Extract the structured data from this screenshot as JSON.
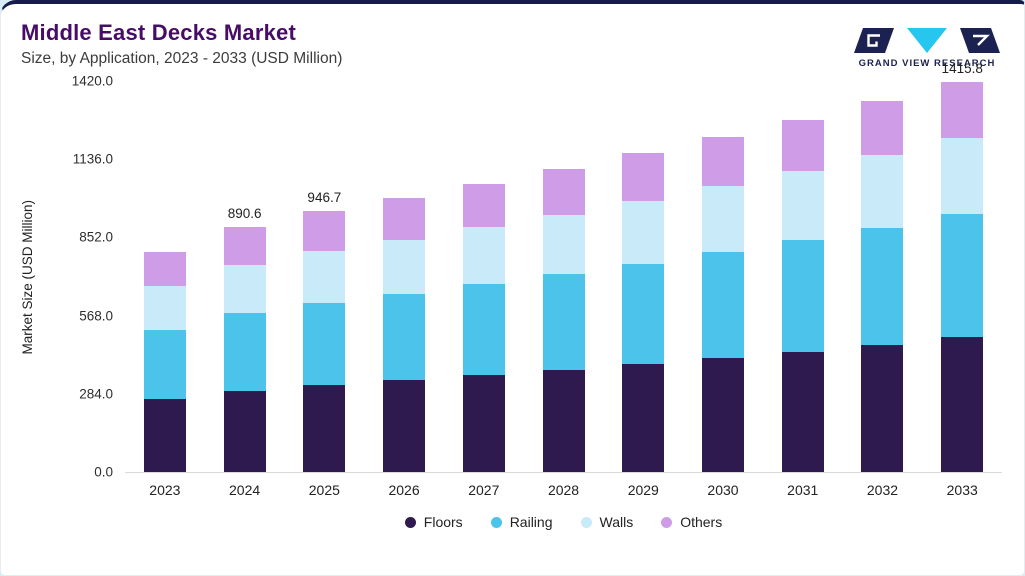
{
  "page": {
    "title": "Middle East Decks Market",
    "subtitle": "Size, by Application, 2023 - 2033 (USD Million)",
    "brand": {
      "name": "GRAND VIEW RESEARCH"
    }
  },
  "colors": {
    "title": "#470c66",
    "top_bar": "#161c4a",
    "brand_navy": "#1b2150",
    "brand_cyan": "#27c6ee",
    "page_background": "#d8ecf5",
    "card_background": "#ffffff"
  },
  "chart_data": {
    "type": "bar",
    "stacked": true,
    "title": "Middle East Decks Market",
    "subtitle": "Size, by Application, 2023 - 2033 (USD Million)",
    "xlabel": "",
    "ylabel": "Market Size (USD Million)",
    "ylim": [
      0,
      1420
    ],
    "grid": false,
    "legend_position": "bottom",
    "yticks": [
      {
        "label": "0.0",
        "value": 0
      },
      {
        "label": "284.0",
        "value": 284
      },
      {
        "label": "568.0",
        "value": 568
      },
      {
        "label": "852.0",
        "value": 852
      },
      {
        "label": "1136.0",
        "value": 1136
      },
      {
        "label": "1420.0",
        "value": 1420
      }
    ],
    "categories": [
      "2023",
      "2024",
      "2025",
      "2026",
      "2027",
      "2028",
      "2029",
      "2030",
      "2031",
      "2032",
      "2033"
    ],
    "series": [
      {
        "name": "Floors",
        "color": "#2e1a4f",
        "values": [
          265,
          296,
          316,
          333,
          351,
          371,
          392,
          414,
          437,
          462,
          490
        ]
      },
      {
        "name": "Railing",
        "color": "#4cc3ea",
        "values": [
          252,
          281,
          298,
          313,
          330,
          347,
          365,
          384,
          404,
          425,
          447
        ]
      },
      {
        "name": "Walls",
        "color": "#c9eaf8",
        "values": [
          158,
          176,
          187,
          197,
          207,
          217,
          228,
          239,
          251,
          263,
          275
        ]
      },
      {
        "name": "Others",
        "color": "#cf9de8",
        "values": [
          125,
          137.6,
          145.7,
          152,
          158,
          165,
          172,
          180,
          188,
          196,
          203.8
        ]
      }
    ],
    "totals": [
      800.0,
      890.6,
      946.7,
      995.0,
      1046.0,
      1100.0,
      1157.0,
      1217.0,
      1280.0,
      1346.0,
      1415.8
    ],
    "bar_labels": {
      "2024": "890.6",
      "2025": "946.7",
      "2033": "1415.8"
    }
  }
}
